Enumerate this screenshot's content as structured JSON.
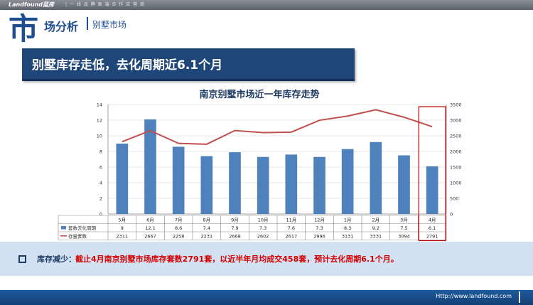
{
  "header": {
    "logo": "Landfound蓝房",
    "tagline": "| 一 线 品 牌   高 端 合 作 应 营 商",
    "section_char": "市",
    "section_title": "场分析",
    "subtitle": "别墅市场"
  },
  "banner": {
    "title": "别墅库存走低，去化周期近6.1个月"
  },
  "chart_data": {
    "type": "bar+line",
    "title": "南京别墅市场近一年库存走势",
    "categories": [
      "5月",
      "6月",
      "7月",
      "8月",
      "9月",
      "10月",
      "11月",
      "12月",
      "1月",
      "2月",
      "3月",
      "4月"
    ],
    "series": [
      {
        "name": "套数去化周期",
        "type": "bar",
        "axis": "left",
        "color": "#4f81bd",
        "values": [
          9,
          12.1,
          8.6,
          7.4,
          7.9,
          7.3,
          7.6,
          7.3,
          8.3,
          9.2,
          7.5,
          6.1
        ]
      },
      {
        "name": "存量套数",
        "type": "line",
        "axis": "right",
        "color": "#c0504d",
        "values": [
          2311,
          2667,
          2258,
          2231,
          2668,
          2602,
          2617,
          2996,
          3131,
          3331,
          3094,
          2791
        ]
      }
    ],
    "left_axis": {
      "min": 0,
      "max": 14,
      "ticks": [
        0,
        2,
        4,
        6,
        8,
        10,
        12,
        14
      ]
    },
    "right_axis": {
      "min": 0,
      "max": 3500,
      "ticks": [
        0,
        500,
        1000,
        1500,
        2000,
        2500,
        3000,
        3500
      ]
    },
    "grid": true,
    "highlight_category": "4月",
    "highlight_color": "#c00000"
  },
  "summary": {
    "label": "库存减少：",
    "text": "截止4月南京别墅市场库存套数2791套，以近半年月均成交458套，预计去化周期6.1个月。"
  },
  "footer": {
    "url": "Http://www.landfound.com"
  }
}
